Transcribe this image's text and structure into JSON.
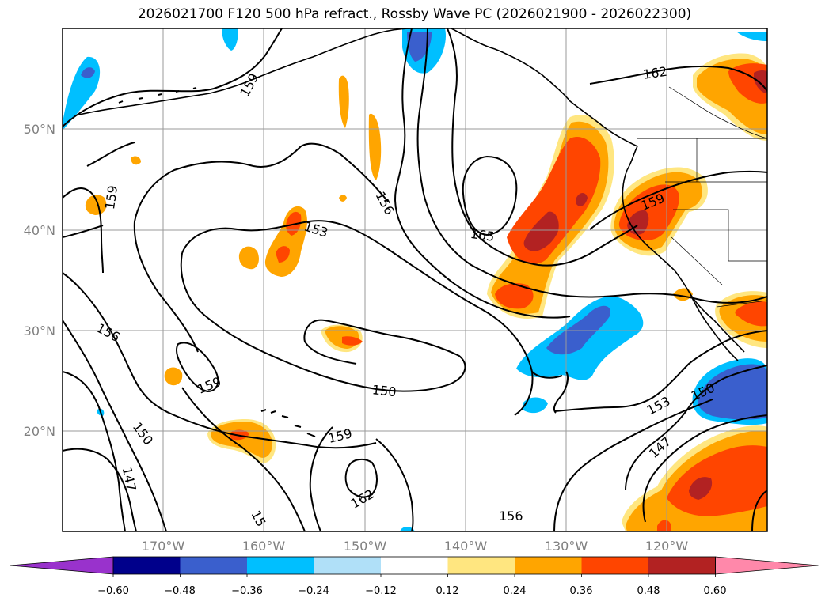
{
  "title": "2026021700 F120 500 hPa refract., Rossby Wave PC (2026021900 - 2026022300)",
  "lat_labels": [
    "50°N",
    "40°N",
    "30°N",
    "20°N"
  ],
  "lon_labels": [
    "170°W",
    "160°W",
    "150°W",
    "140°W",
    "130°W",
    "120°W"
  ],
  "contour_labels": [
    "159",
    "162",
    "159",
    "153",
    "156",
    "165",
    "159",
    "156",
    "159",
    "150",
    "153",
    "150",
    "150",
    "159",
    "147",
    "147",
    "162",
    "156",
    "15"
  ],
  "colorbar": {
    "ticks": [
      "−0.60",
      "−0.48",
      "−0.36",
      "−0.24",
      "−0.12",
      "0.12",
      "0.24",
      "0.36",
      "0.48",
      "0.60"
    ],
    "colors": [
      "#9932cc",
      "#00008b",
      "#3a5fcd",
      "#00bfff",
      "#b0e0f8",
      "#ffffff",
      "#ffe680",
      "#ffa500",
      "#ff4500",
      "#b22222",
      "#ff88aa"
    ]
  },
  "legend_colors": {
    "warm1": "#ffe680",
    "warm2": "#ffa500",
    "warm3": "#ff4500",
    "warm4": "#b22222",
    "cool1": "#b0e0f8",
    "cool2": "#00bfff",
    "cool3": "#3a5fcd"
  }
}
